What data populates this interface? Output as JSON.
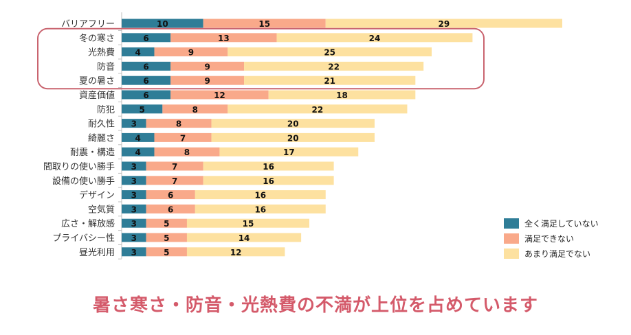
{
  "chart_data": {
    "type": "bar",
    "orientation": "horizontal",
    "stacked": true,
    "categories": [
      "バリアフリー",
      "冬の寒さ",
      "光熱費",
      "防音",
      "夏の暑さ",
      "資産価値",
      "防犯",
      "耐久性",
      "綺麗さ",
      "耐震・構造",
      "間取りの使い勝手",
      "設備の使い勝手",
      "デザイン",
      "空気質",
      "広さ・解放感",
      "プライバシー性",
      "昼光利用"
    ],
    "series": [
      {
        "name": "全く満足していない",
        "color": "#2f7d97",
        "values": [
          10,
          6,
          4,
          6,
          6,
          6,
          5,
          3,
          4,
          4,
          3,
          3,
          3,
          3,
          3,
          3,
          3
        ]
      },
      {
        "name": "満足できない",
        "color": "#f9a98a",
        "values": [
          15,
          13,
          9,
          9,
          9,
          12,
          8,
          8,
          7,
          8,
          7,
          7,
          6,
          6,
          5,
          5,
          5
        ]
      },
      {
        "name": "あまり満足でない",
        "color": "#fde1a0",
        "values": [
          29,
          24,
          25,
          22,
          21,
          18,
          22,
          20,
          20,
          17,
          16,
          16,
          16,
          16,
          15,
          14,
          12
        ]
      }
    ],
    "highlighted_categories": [
      "冬の寒さ",
      "光熱費",
      "防音",
      "夏の暑さ"
    ],
    "highlight_color": "#c9646f",
    "legend_position": "bottom-right",
    "xlim": [
      0,
      54
    ]
  },
  "caption": "暑さ寒さ・防音・光熱費の不満が上位を占めています"
}
